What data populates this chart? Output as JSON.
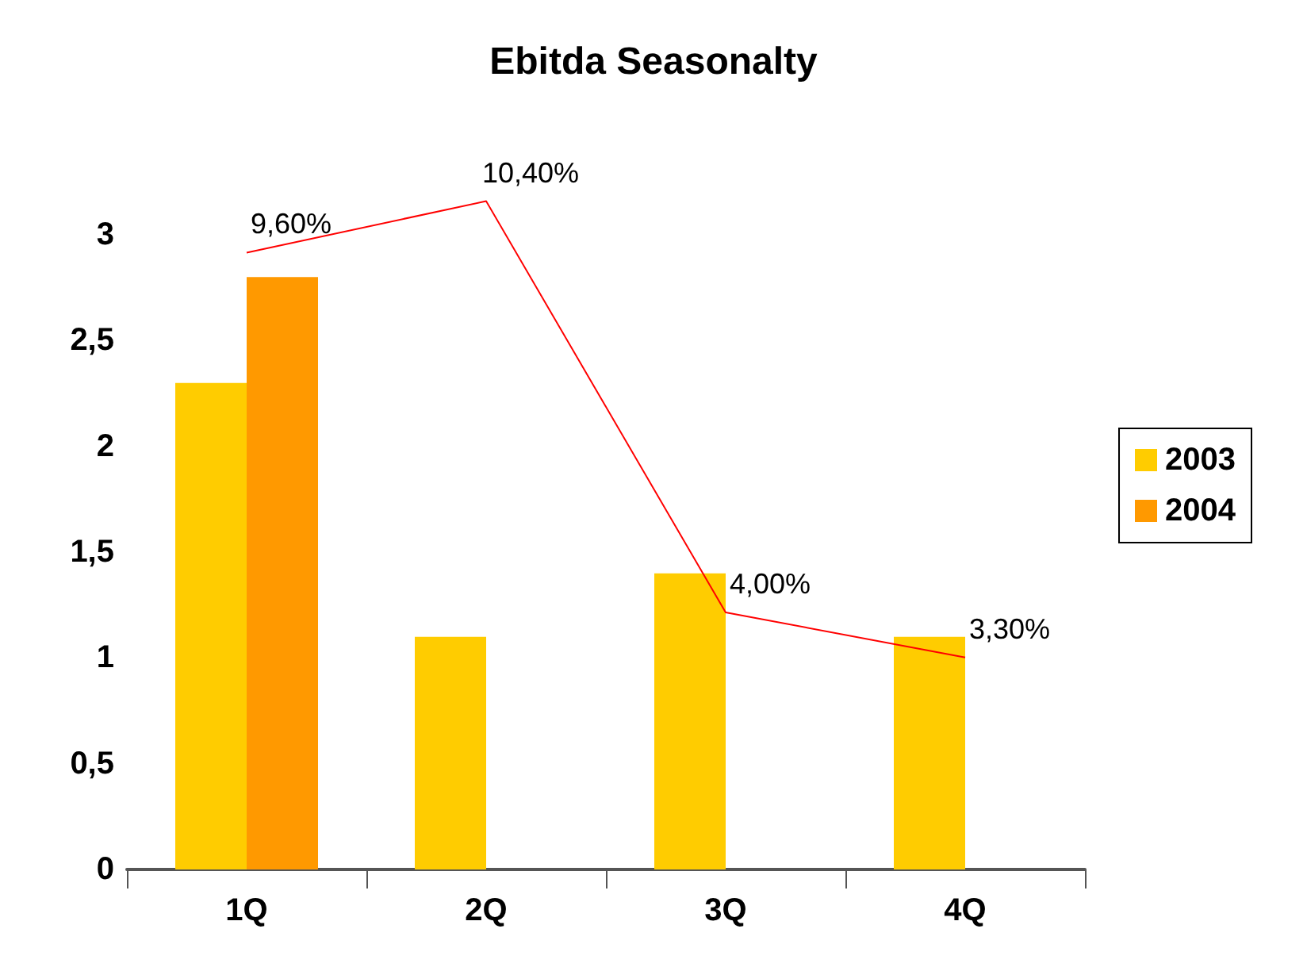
{
  "chart_data": {
    "type": "bar",
    "title": "Ebitda Seasonalty",
    "categories": [
      "1Q",
      "2Q",
      "3Q",
      "4Q"
    ],
    "series": [
      {
        "name": "2003",
        "color": "#ffcc00",
        "values": [
          2.3,
          1.1,
          1.4,
          1.1
        ]
      },
      {
        "name": "2004",
        "color": "#ff9900",
        "values": [
          2.8,
          null,
          null,
          null
        ]
      },
      {
        "type": "line",
        "axis": "y2",
        "color": "#ff0000",
        "values": [
          9.6,
          10.4,
          4.0,
          3.3
        ],
        "value_labels": [
          "9,60%",
          "10,40%",
          "4,00%",
          "3,30%"
        ]
      }
    ],
    "ylim": [
      0,
      3
    ],
    "yticks": [
      0,
      {
        "value": 0.5,
        "label": "0,5"
      },
      1,
      {
        "value": 1.5,
        "label": "1,5"
      },
      2,
      {
        "value": 2.5,
        "label": "2,5"
      },
      3
    ],
    "grid": false,
    "legend": "right",
    "marker": "none",
    "line_style": "solid"
  }
}
